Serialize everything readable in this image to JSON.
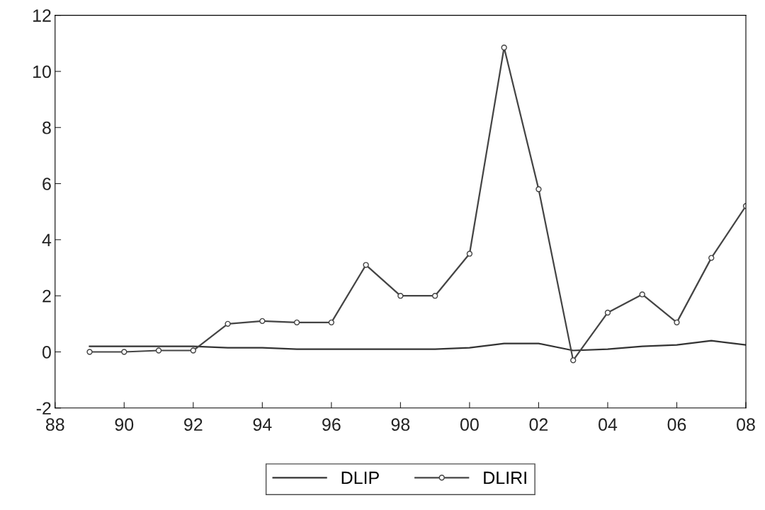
{
  "chart_data": {
    "type": "line",
    "x": [
      1989,
      1990,
      1991,
      1992,
      1993,
      1994,
      1995,
      1996,
      1997,
      1998,
      1999,
      2000,
      2001,
      2002,
      2003,
      2004,
      2005,
      2006,
      2007,
      2008
    ],
    "series": [
      {
        "name": "DLIP",
        "color": "#333333",
        "marker": "none",
        "values": [
          0.2,
          0.2,
          0.2,
          0.2,
          0.15,
          0.15,
          0.1,
          0.1,
          0.1,
          0.1,
          0.1,
          0.15,
          0.3,
          0.3,
          0.05,
          0.1,
          0.2,
          0.25,
          0.4,
          0.25
        ]
      },
      {
        "name": "DLIRI",
        "color": "#444444",
        "marker": "circle",
        "values": [
          0,
          0,
          0.05,
          0.05,
          1.0,
          1.1,
          1.05,
          1.05,
          3.1,
          2.0,
          2.0,
          3.5,
          10.85,
          5.8,
          -0.3,
          1.4,
          2.05,
          1.05,
          3.35,
          5.2
        ]
      }
    ],
    "xlim": [
      1988,
      2008
    ],
    "xticks": [
      {
        "value": 1988,
        "label": "88"
      },
      {
        "value": 1990,
        "label": "90"
      },
      {
        "value": 1992,
        "label": "92"
      },
      {
        "value": 1994,
        "label": "94"
      },
      {
        "value": 1996,
        "label": "96"
      },
      {
        "value": 1998,
        "label": "98"
      },
      {
        "value": 2000,
        "label": "00"
      },
      {
        "value": 2002,
        "label": "02"
      },
      {
        "value": 2004,
        "label": "04"
      },
      {
        "value": 2006,
        "label": "06"
      },
      {
        "value": 2008,
        "label": "08"
      }
    ],
    "ylim": [
      -2,
      12
    ],
    "yticks": [
      -2,
      0,
      2,
      4,
      6,
      8,
      10,
      12
    ],
    "grid": false,
    "legend": "bottom",
    "line_style": "solid"
  }
}
